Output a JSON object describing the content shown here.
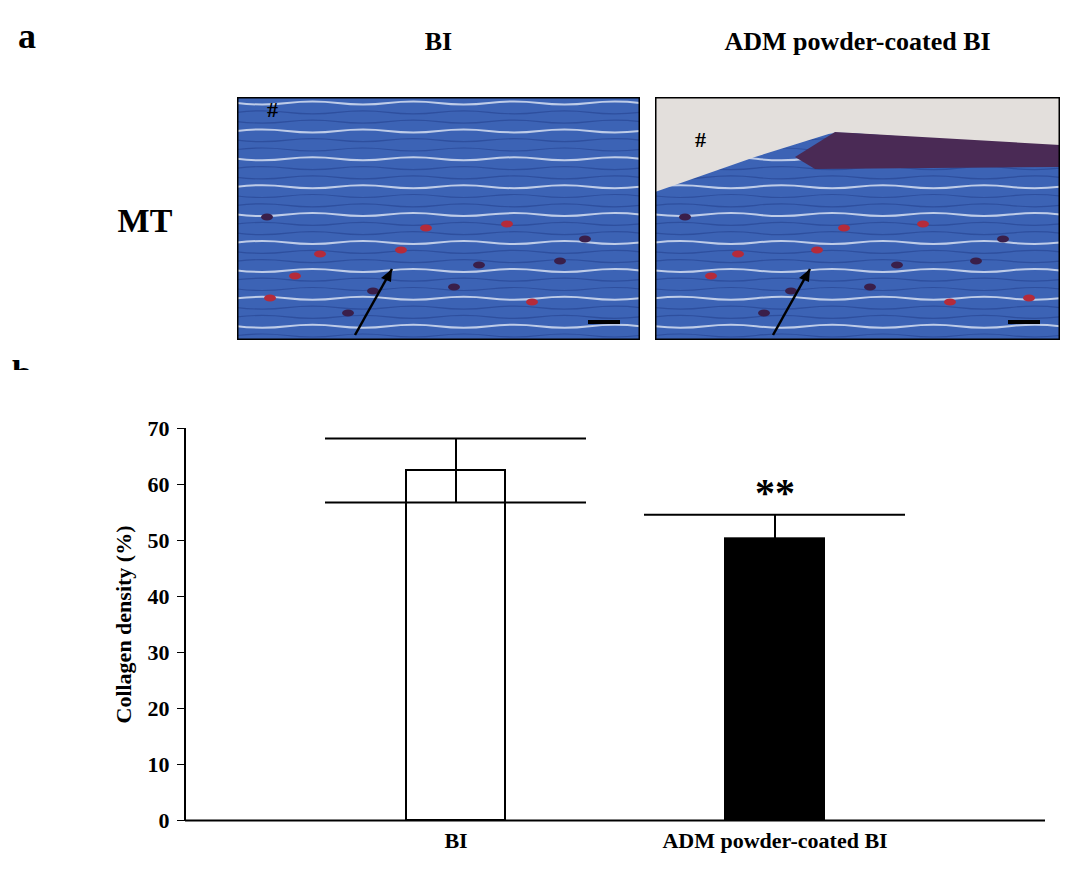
{
  "panel_a": {
    "letter": "a",
    "columns": [
      "BI",
      "ADM powder-coated BI"
    ],
    "row_label": "MT",
    "image_marks": [
      "#",
      "#"
    ]
  },
  "chart_data": {
    "type": "bar",
    "panel_label": "b",
    "ylabel": "Collagen density (%)",
    "categories": [
      "BI",
      "ADM powder-coated BI"
    ],
    "values": [
      62.5,
      50.3
    ],
    "errors": [
      5.7,
      4.3
    ],
    "colors": [
      "#ffffff",
      "#000000"
    ],
    "ylim": [
      0,
      70
    ],
    "yticks": [
      0,
      10,
      20,
      30,
      40,
      50,
      60,
      70
    ],
    "annotations": [
      {
        "category": "ADM powder-coated BI",
        "text": "**"
      }
    ]
  }
}
